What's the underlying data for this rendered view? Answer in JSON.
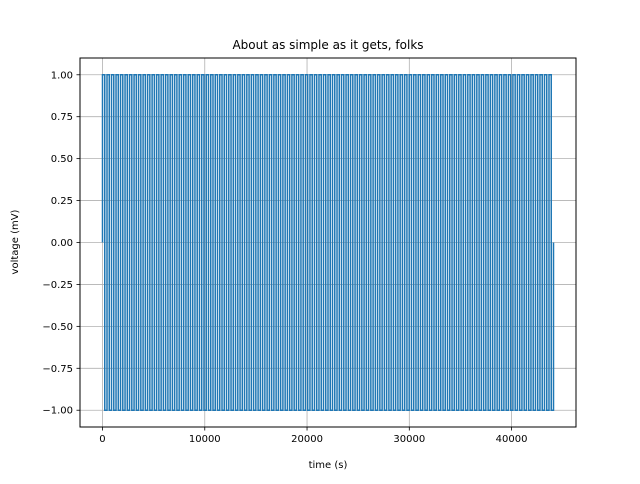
{
  "chart_data": {
    "type": "line",
    "title": "About as simple as it gets, folks",
    "xlabel": "time (s)",
    "ylabel": "voltage (mV)",
    "xlim": [
      -2200,
      46300
    ],
    "ylim": [
      -1.1,
      1.1
    ],
    "xticks": [
      0,
      10000,
      20000,
      30000,
      40000
    ],
    "xtick_labels": [
      "0",
      "10000",
      "20000",
      "30000",
      "40000"
    ],
    "yticks": [
      -1.0,
      -0.75,
      -0.5,
      -0.25,
      0.0,
      0.25,
      0.5,
      0.75,
      1.0
    ],
    "ytick_labels": [
      "−1.00",
      "−0.75",
      "−0.50",
      "−0.25",
      "0.00",
      "0.25",
      "0.50",
      "0.75",
      "1.00"
    ],
    "grid": true,
    "series": [
      {
        "color": "#1f77b4",
        "description_of_signal": "square wave between -1 and 1",
        "x_start": 0,
        "x_end": 44100,
        "period": 441,
        "amplitude": 1.0
      }
    ]
  }
}
